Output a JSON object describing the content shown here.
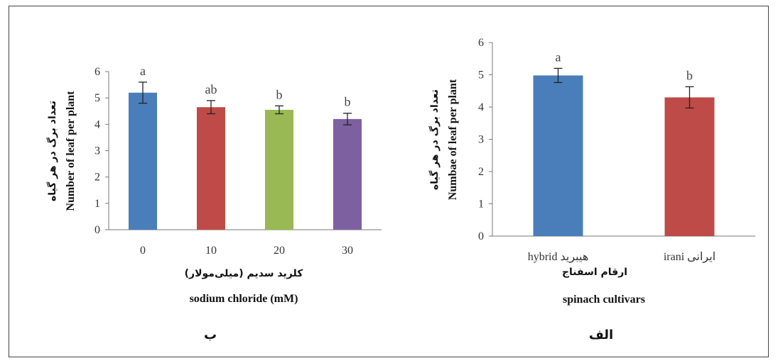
{
  "chart_data": [
    {
      "type": "bar",
      "panel_label": "ب",
      "categories": [
        "0",
        "10",
        "20",
        "30"
      ],
      "values": [
        5.2,
        4.65,
        4.55,
        4.2
      ],
      "errors": [
        0.4,
        0.25,
        0.15,
        0.22
      ],
      "letters": [
        "a",
        "ab",
        "b",
        "b"
      ],
      "colors": [
        "#4a7ebb",
        "#be4b48",
        "#98b954",
        "#7d60a0"
      ],
      "xlabel_fa": "کلرید سدیم (میلی‌مولار)",
      "xlabel_en": "sodium chloride (mM)",
      "ylabel_fa": "تعداد برگ در هر گیاه",
      "ylabel_en": "Number of leaf per plant",
      "ylim": [
        0,
        6
      ],
      "yticks": [
        "0",
        "1",
        "2",
        "3",
        "4",
        "5",
        "6"
      ],
      "grid": false
    },
    {
      "type": "bar",
      "panel_label": "الف",
      "categories": [
        "hybrid هیبرید",
        "irani ایرانی"
      ],
      "values": [
        4.98,
        4.3
      ],
      "errors": [
        0.22,
        0.33
      ],
      "letters": [
        "a",
        "b"
      ],
      "colors": [
        "#4a7ebb",
        "#be4b48"
      ],
      "xlabel_fa": "ارقام اسفناج",
      "xlabel_en": "spinach cultivars",
      "ylabel_fa": "تعداد برگ در هر گیاه",
      "ylabel_en": "Numbae of leaf per plant",
      "ylim": [
        0,
        6
      ],
      "yticks": [
        "0",
        "1",
        "2",
        "3",
        "4",
        "5",
        "6"
      ],
      "grid": false
    }
  ]
}
